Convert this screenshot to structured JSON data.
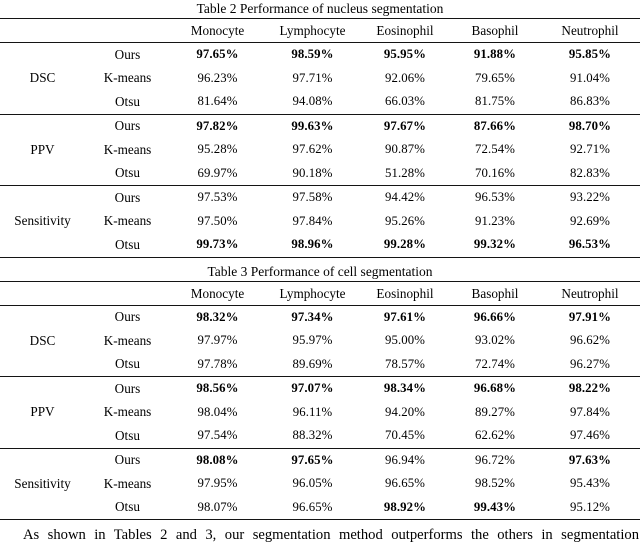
{
  "tables": [
    {
      "title": "Table 2 Performance of nucleus segmentation",
      "columns": [
        "Monocyte",
        "Lymphocyte",
        "Eosinophil",
        "Basophil",
        "Neutrophil"
      ],
      "sections": [
        {
          "metric": "DSC",
          "rows": [
            {
              "method": "Ours",
              "values": [
                "97.65%",
                "98.59%",
                "95.95%",
                "91.88%",
                "95.85%"
              ],
              "bold": [
                true,
                true,
                true,
                true,
                true
              ]
            },
            {
              "method": "K-means",
              "values": [
                "96.23%",
                "97.71%",
                "92.06%",
                "79.65%",
                "91.04%"
              ],
              "bold": [
                false,
                false,
                false,
                false,
                false
              ]
            },
            {
              "method": "Otsu",
              "values": [
                "81.64%",
                "94.08%",
                "66.03%",
                "81.75%",
                "86.83%"
              ],
              "bold": [
                false,
                false,
                false,
                false,
                false
              ]
            }
          ]
        },
        {
          "metric": "PPV",
          "rows": [
            {
              "method": "Ours",
              "values": [
                "97.82%",
                "99.63%",
                "97.67%",
                "87.66%",
                "98.70%"
              ],
              "bold": [
                true,
                true,
                true,
                true,
                true
              ]
            },
            {
              "method": "K-means",
              "values": [
                "95.28%",
                "97.62%",
                "90.87%",
                "72.54%",
                "92.71%"
              ],
              "bold": [
                false,
                false,
                false,
                false,
                false
              ]
            },
            {
              "method": "Otsu",
              "values": [
                "69.97%",
                "90.18%",
                "51.28%",
                "70.16%",
                "82.83%"
              ],
              "bold": [
                false,
                false,
                false,
                false,
                false
              ]
            }
          ]
        },
        {
          "metric": "Sensitivity",
          "rows": [
            {
              "method": "Ours",
              "values": [
                "97.53%",
                "97.58%",
                "94.42%",
                "96.53%",
                "93.22%"
              ],
              "bold": [
                false,
                false,
                false,
                false,
                false
              ]
            },
            {
              "method": "K-means",
              "values": [
                "97.50%",
                "97.84%",
                "95.26%",
                "91.23%",
                "92.69%"
              ],
              "bold": [
                false,
                false,
                false,
                false,
                false
              ]
            },
            {
              "method": "Otsu",
              "values": [
                "99.73%",
                "98.96%",
                "99.28%",
                "99.32%",
                "96.53%"
              ],
              "bold": [
                true,
                true,
                true,
                true,
                true
              ]
            }
          ]
        }
      ]
    },
    {
      "title": "Table 3 Performance of cell segmentation",
      "columns": [
        "Monocyte",
        "Lymphocyte",
        "Eosinophil",
        "Basophil",
        "Neutrophil"
      ],
      "sections": [
        {
          "metric": "DSC",
          "rows": [
            {
              "method": "Ours",
              "values": [
                "98.32%",
                "97.34%",
                "97.61%",
                "96.66%",
                "97.91%"
              ],
              "bold": [
                true,
                true,
                true,
                true,
                true
              ]
            },
            {
              "method": "K-means",
              "values": [
                "97.97%",
                "95.97%",
                "95.00%",
                "93.02%",
                "96.62%"
              ],
              "bold": [
                false,
                false,
                false,
                false,
                false
              ]
            },
            {
              "method": "Otsu",
              "values": [
                "97.78%",
                "89.69%",
                "78.57%",
                "72.74%",
                "96.27%"
              ],
              "bold": [
                false,
                false,
                false,
                false,
                false
              ]
            }
          ]
        },
        {
          "metric": "PPV",
          "rows": [
            {
              "method": "Ours",
              "values": [
                "98.56%",
                "97.07%",
                "98.34%",
                "96.68%",
                "98.22%"
              ],
              "bold": [
                true,
                true,
                true,
                true,
                true
              ]
            },
            {
              "method": "K-means",
              "values": [
                "98.04%",
                "96.11%",
                "94.20%",
                "89.27%",
                "97.84%"
              ],
              "bold": [
                false,
                false,
                false,
                false,
                false
              ]
            },
            {
              "method": "Otsu",
              "values": [
                "97.54%",
                "88.32%",
                "70.45%",
                "62.62%",
                "97.46%"
              ],
              "bold": [
                false,
                false,
                false,
                false,
                false
              ]
            }
          ]
        },
        {
          "metric": "Sensitivity",
          "rows": [
            {
              "method": "Ours",
              "values": [
                "98.08%",
                "97.65%",
                "96.94%",
                "96.72%",
                "97.63%"
              ],
              "bold": [
                true,
                true,
                false,
                false,
                true
              ]
            },
            {
              "method": "K-means",
              "values": [
                "97.95%",
                "96.05%",
                "96.65%",
                "98.52%",
                "95.43%"
              ],
              "bold": [
                false,
                false,
                false,
                false,
                false
              ]
            },
            {
              "method": "Otsu",
              "values": [
                "98.07%",
                "96.65%",
                "98.92%",
                "99.43%",
                "95.12%"
              ],
              "bold": [
                false,
                false,
                true,
                true,
                false
              ]
            }
          ]
        }
      ]
    }
  ],
  "footer_text": "As shown in Tables 2 and 3, our segmentation method outperforms the others in segmentation"
}
